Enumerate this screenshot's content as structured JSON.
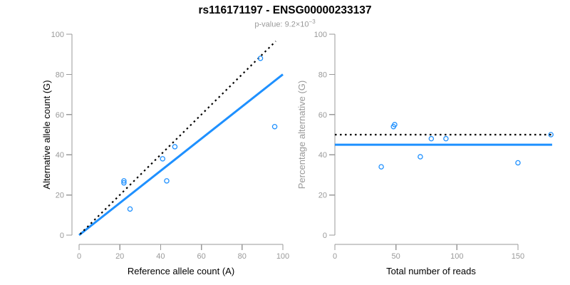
{
  "header": {
    "title": "rs116171197 - ENSG00000233137",
    "pvalue_prefix": "p-value: ",
    "pvalue_base": "9.2×10",
    "pvalue_exponent": "−3"
  },
  "colors": {
    "accent_blue": "#1E90FF",
    "axis_gray": "#999999",
    "title_black": "#000000",
    "muted_ylabel_gray": "#999999"
  },
  "chart_data": [
    {
      "type": "scatter",
      "panel": "left",
      "xlabel": "Reference allele count (A)",
      "ylabel": "Alternative allele count (G)",
      "xlim": [
        0,
        100
      ],
      "ylim": [
        0,
        100
      ],
      "xticks": [
        0,
        20,
        40,
        60,
        80,
        100
      ],
      "yticks": [
        0,
        20,
        40,
        60,
        80,
        100
      ],
      "grid": false,
      "legend": "none",
      "point_color": "#1E90FF",
      "points": [
        [
          22,
          26
        ],
        [
          22,
          27
        ],
        [
          25,
          13
        ],
        [
          41,
          38
        ],
        [
          43,
          27
        ],
        [
          47,
          44
        ],
        [
          89,
          88
        ],
        [
          96,
          54
        ]
      ],
      "lines": [
        {
          "name": "regression-line",
          "style": "solid",
          "color": "#1E90FF",
          "width": 3,
          "x1": 0,
          "y1": 0,
          "x2": 100,
          "y2": 80
        },
        {
          "name": "identity-line",
          "style": "dotted",
          "color": "#000000",
          "width": 2.2,
          "x1": 0.5,
          "y1": 0.5,
          "x2": 96.5,
          "y2": 96.5
        }
      ]
    },
    {
      "type": "scatter",
      "panel": "right",
      "xlabel": "Total number of reads",
      "ylabel": "Percentage alternative (G)",
      "xlim": [
        0,
        179
      ],
      "ylim": [
        0,
        100
      ],
      "xticks": [
        0,
        50,
        100,
        150
      ],
      "yticks": [
        0,
        20,
        40,
        60,
        80,
        100
      ],
      "grid": false,
      "legend": "none",
      "point_color": "#1E90FF",
      "points": [
        [
          38,
          34
        ],
        [
          48,
          54
        ],
        [
          49,
          55
        ],
        [
          70,
          39
        ],
        [
          79,
          48
        ],
        [
          91,
          48
        ],
        [
          150,
          36
        ],
        [
          177,
          50
        ]
      ],
      "lines": [
        {
          "name": "observed-percentage-line",
          "style": "solid",
          "color": "#1E90FF",
          "width": 3,
          "x1": 0,
          "y1": 45,
          "x2": 178,
          "y2": 45
        },
        {
          "name": "expected-percentage-line",
          "style": "dotted",
          "color": "#000000",
          "width": 2.2,
          "x1": 0,
          "y1": 50,
          "x2": 178,
          "y2": 50
        }
      ]
    }
  ]
}
